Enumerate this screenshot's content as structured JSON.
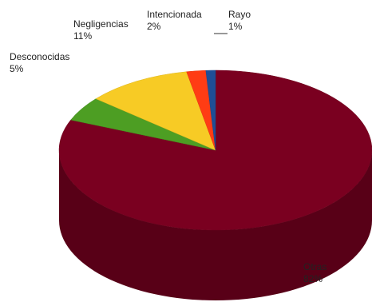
{
  "chart_data": {
    "type": "pie",
    "style": "3d",
    "title": "",
    "legend": "none",
    "slices": [
      {
        "label": "Otras",
        "value": 82,
        "value_label": "82%",
        "color": "#7a0020"
      },
      {
        "label": "Desconocidas",
        "value": 5,
        "value_label": "5%",
        "color": "#4d9e23"
      },
      {
        "label": "Negligencias",
        "value": 11,
        "value_label": "11%",
        "color": "#f7cb25"
      },
      {
        "label": "Intencionada",
        "value": 2,
        "value_label": "2%",
        "color": "#ff3c14"
      },
      {
        "label": "Rayo",
        "value": 1,
        "value_label": "1%",
        "color": "#1f4e96"
      }
    ]
  }
}
